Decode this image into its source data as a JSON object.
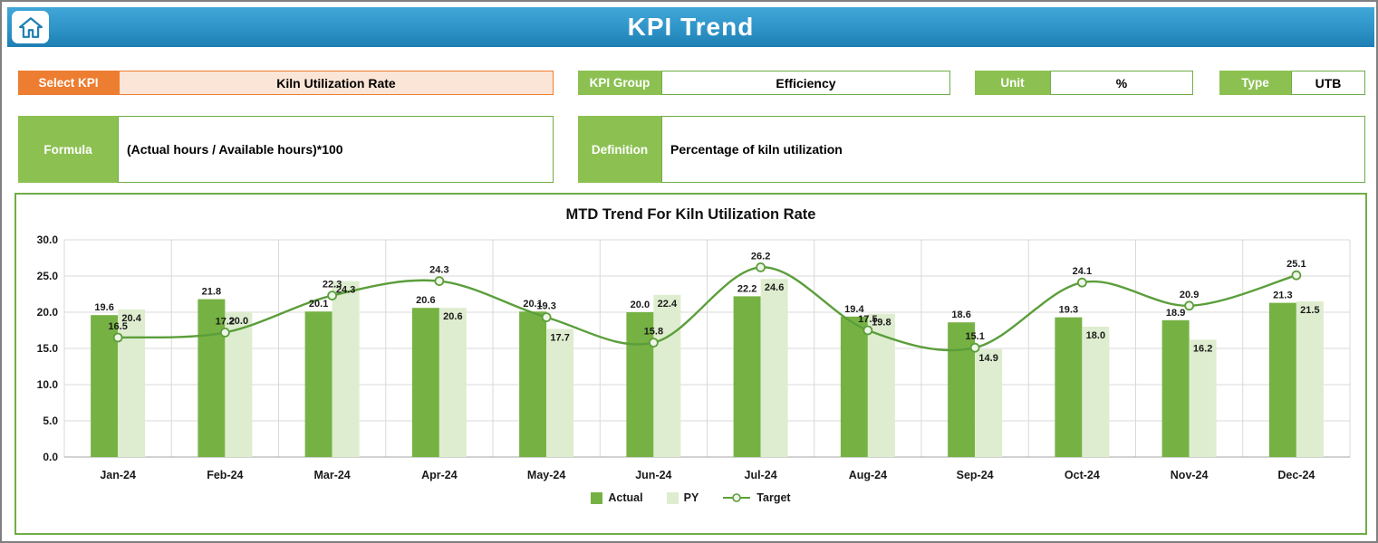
{
  "header": {
    "title": "KPI Trend"
  },
  "controls": {
    "select_kpi": {
      "label": "Select KPI",
      "value": "Kiln Utilization Rate"
    },
    "kpi_group": {
      "label": "KPI Group",
      "value": "Efficiency"
    },
    "unit": {
      "label": "Unit",
      "value": "%"
    },
    "type": {
      "label": "Type",
      "value": "UTB"
    },
    "formula": {
      "label": "Formula",
      "value": "(Actual hours / Available hours)*100"
    },
    "definition": {
      "label": "Definition",
      "value": "Percentage of kiln utilization"
    }
  },
  "chart_data": {
    "type": "bar",
    "subtype": "grouped-bars-with-smooth-line",
    "title": "MTD Trend For Kiln Utilization Rate",
    "categories": [
      "Jan-24",
      "Feb-24",
      "Mar-24",
      "Apr-24",
      "May-24",
      "Jun-24",
      "Jul-24",
      "Aug-24",
      "Sep-24",
      "Oct-24",
      "Nov-24",
      "Dec-24"
    ],
    "series": [
      {
        "name": "Actual",
        "type": "bar",
        "values": [
          19.6,
          21.8,
          20.1,
          20.6,
          20.1,
          20.0,
          22.2,
          19.4,
          18.6,
          19.3,
          18.9,
          21.3
        ]
      },
      {
        "name": "PY",
        "type": "bar",
        "values": [
          20.4,
          20.0,
          24.3,
          20.6,
          17.7,
          22.4,
          24.6,
          19.8,
          14.9,
          18.0,
          16.2,
          21.5
        ]
      },
      {
        "name": "Target",
        "type": "line",
        "values": [
          16.5,
          17.2,
          22.3,
          24.3,
          19.3,
          15.8,
          26.2,
          17.5,
          15.1,
          24.1,
          20.9,
          25.1
        ]
      }
    ],
    "ylim": [
      0,
      30
    ],
    "ytick_step": 5,
    "ytick_format": "one-decimal",
    "grid": true,
    "legend_position": "bottom"
  },
  "colors": {
    "header_top": "#41A6D8",
    "header_bottom": "#1D7FB3",
    "orange": "#ED7D31",
    "orange_light": "#FBE5D6",
    "green_label": "#8CC152",
    "green_border": "#70AD47",
    "bar_actual": "#76B243",
    "bar_py": "#DEEDCF",
    "line_target": "#5B9E3B",
    "marker_fill": "#EFF6E8",
    "grid": "#D9D9D9",
    "axis": "#A6A6A6"
  }
}
